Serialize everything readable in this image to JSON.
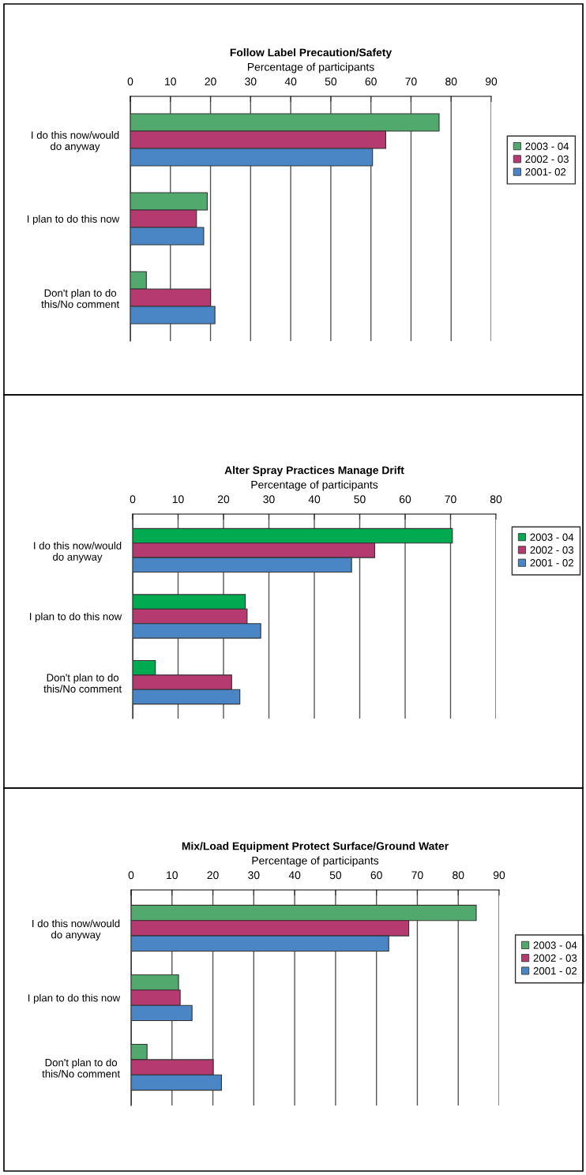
{
  "chart_data": [
    {
      "type": "bar",
      "orientation": "horizontal",
      "title": "Follow Label Precaution/Safety",
      "xlabel": "Percentage of participants",
      "categories": [
        "I do this now/would do anyway",
        "I plan to do this now",
        "Don't plan to do this/No comment"
      ],
      "xlim": [
        0,
        90
      ],
      "xticks": [
        0,
        10,
        20,
        30,
        40,
        50,
        60,
        70,
        80,
        90
      ],
      "grid": "x",
      "legend": "right",
      "series": [
        {
          "name": "2003 - 04",
          "color": "#52a96e",
          "values": [
            77,
            19.2,
            4.0
          ]
        },
        {
          "name": "2002 - 03",
          "color": "#b43a70",
          "values": [
            63.7,
            16.5,
            20.0
          ]
        },
        {
          "name": "2001- 02",
          "color": "#4a86c5",
          "values": [
            60.4,
            18.3,
            21.1
          ]
        }
      ]
    },
    {
      "type": "bar",
      "orientation": "horizontal",
      "title": "Alter Spray Practices Manage Drift",
      "xlabel": "Percentage of participants",
      "categories": [
        "I do this now/would do anyway",
        "I plan to do this now",
        "Don't plan to do this/No comment"
      ],
      "xlim": [
        0,
        80
      ],
      "xticks": [
        0,
        10,
        20,
        30,
        40,
        50,
        60,
        70,
        80
      ],
      "grid": "x",
      "legend": "right",
      "series": [
        {
          "name": "2003 - 04",
          "color": "#00aa50",
          "values": [
            70.4,
            24.8,
            5.0
          ]
        },
        {
          "name": "2002 - 03",
          "color": "#b43a70",
          "values": [
            53.3,
            25.2,
            21.8
          ]
        },
        {
          "name": "2001 - 02",
          "color": "#4a86c5",
          "values": [
            48.2,
            28.2,
            23.6
          ]
        }
      ]
    },
    {
      "type": "bar",
      "orientation": "horizontal",
      "title": "Mix/Load Equipment Protect Surface/Ground Water",
      "xlabel": "Percentage of participants",
      "categories": [
        "I do this now/would do anyway",
        "I plan to do this now",
        "Don't plan to do this/No comment"
      ],
      "xlim": [
        0,
        90
      ],
      "xticks": [
        0,
        10,
        20,
        30,
        40,
        50,
        60,
        70,
        80,
        90
      ],
      "grid": "x",
      "legend": "right",
      "series": [
        {
          "name": "2003 - 04",
          "color": "#52a96e",
          "values": [
            84.4,
            11.6,
            3.9
          ]
        },
        {
          "name": "2002 - 03",
          "color": "#b43a70",
          "values": [
            67.9,
            12.0,
            20.1
          ]
        },
        {
          "name": "2001 - 02",
          "color": "#4a86c5",
          "values": [
            63.0,
            14.9,
            22.1
          ]
        }
      ]
    }
  ]
}
